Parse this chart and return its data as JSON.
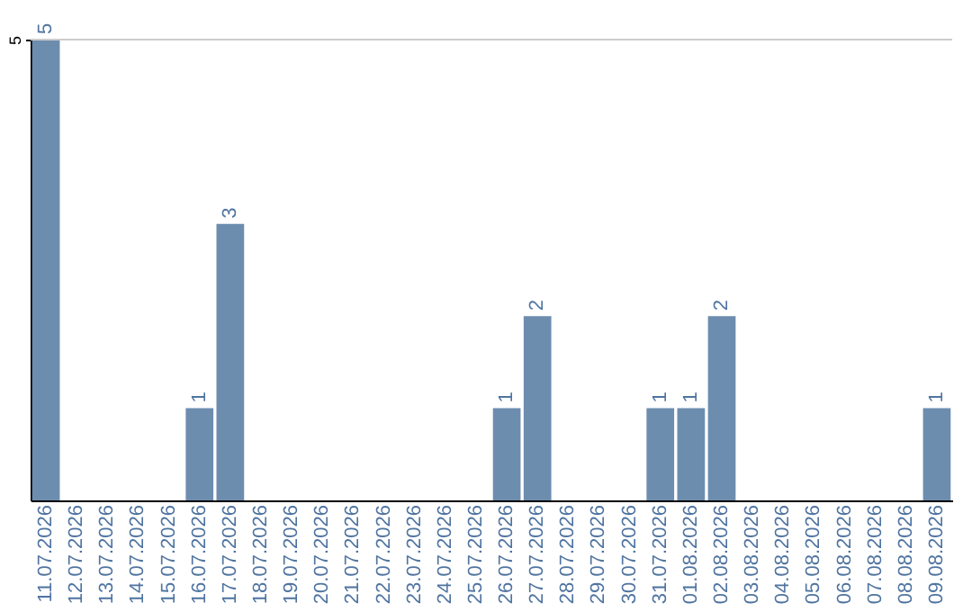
{
  "chart_data": {
    "type": "bar",
    "categories": [
      "11.07.2026",
      "12.07.2026",
      "13.07.2026",
      "14.07.2026",
      "15.07.2026",
      "16.07.2026",
      "17.07.2026",
      "18.07.2026",
      "19.07.2026",
      "20.07.2026",
      "21.07.2026",
      "22.07.2026",
      "23.07.2026",
      "24.07.2026",
      "25.07.2026",
      "26.07.2026",
      "27.07.2026",
      "28.07.2026",
      "29.07.2026",
      "30.07.2026",
      "31.07.2026",
      "01.08.2026",
      "02.08.2026",
      "03.08.2026",
      "04.08.2026",
      "05.08.2026",
      "06.08.2026",
      "07.08.2026",
      "08.08.2026",
      "09.08.2026"
    ],
    "values": [
      5,
      0,
      0,
      0,
      0,
      1,
      3,
      0,
      0,
      0,
      0,
      0,
      0,
      0,
      0,
      1,
      2,
      0,
      0,
      0,
      1,
      1,
      2,
      0,
      0,
      0,
      0,
      0,
      0,
      1
    ],
    "value_labels": [
      "5",
      null,
      null,
      null,
      null,
      "1",
      "3",
      null,
      null,
      null,
      null,
      null,
      null,
      null,
      null,
      "1",
      "2",
      null,
      null,
      null,
      "1",
      "1",
      "2",
      null,
      null,
      null,
      null,
      null,
      null,
      "1"
    ],
    "color": "#6d8dae",
    "ylim": [
      0,
      5
    ],
    "yticks": [
      5
    ],
    "ref_lines": [
      {
        "axis": "y",
        "value": 5,
        "color": "#cccccc"
      }
    ]
  }
}
